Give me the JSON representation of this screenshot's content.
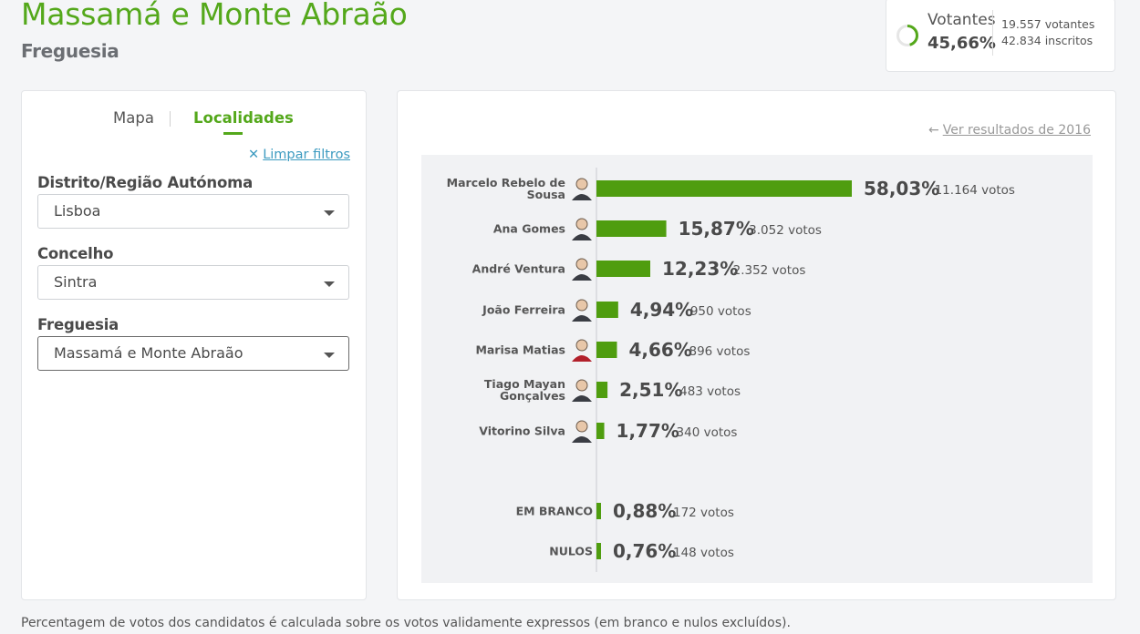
{
  "header": {
    "title": "Massamá e Monte Abraão",
    "subtitle": "Freguesia"
  },
  "turnout": {
    "label": "Votantes",
    "percent": "45,66%",
    "percent_value": 45.66,
    "voters": "19.557 votantes",
    "registered": "42.834 inscritos"
  },
  "filters": {
    "tabs": [
      "Mapa",
      "Localidades"
    ],
    "active_tab": "Localidades",
    "clear_label": "Limpar filtros",
    "fields": [
      {
        "label": "Distrito/Região Autónoma",
        "value": "Lisboa"
      },
      {
        "label": "Concelho",
        "value": "Sintra"
      },
      {
        "label": "Freguesia",
        "value": "Massamá e Monte Abraão"
      }
    ]
  },
  "results": {
    "prev_link": "Ver resultados de 2016"
  },
  "colors": {
    "accent": "#54a81b",
    "bar": "#4f9d0f",
    "link": "#3d9bc0"
  },
  "chart_data": {
    "type": "bar",
    "orientation": "horizontal",
    "unit": "%",
    "categories": [
      "Marcelo Rebelo de Sousa",
      "Ana Gomes",
      "André Ventura",
      "João Ferreira",
      "Marisa Matias",
      "Tiago Mayan Gonçalves",
      "Vitorino Silva",
      "EM BRANCO",
      "NULOS"
    ],
    "values": [
      58.03,
      15.87,
      12.23,
      4.94,
      4.66,
      2.51,
      1.77,
      0.88,
      0.76
    ],
    "value_labels": [
      "58,03%",
      "15,87%",
      "12,23%",
      "4,94%",
      "4,66%",
      "2,51%",
      "1,77%",
      "0,88%",
      "0,76%"
    ],
    "votes_labels": [
      "11.164 votos",
      "3.052 votos",
      "2.352 votos",
      "950 votos",
      "896 votos",
      "483 votos",
      "340 votos",
      "172 votos",
      "148 votos"
    ],
    "votes": [
      11164,
      3052,
      2352,
      950,
      896,
      483,
      340,
      172,
      148
    ],
    "has_photo": [
      true,
      true,
      true,
      true,
      true,
      true,
      true,
      false,
      false
    ]
  },
  "footnote": "Percentagem de votos dos candidatos é calculada sobre os votos validamente expressos (em branco e nulos excluídos)."
}
